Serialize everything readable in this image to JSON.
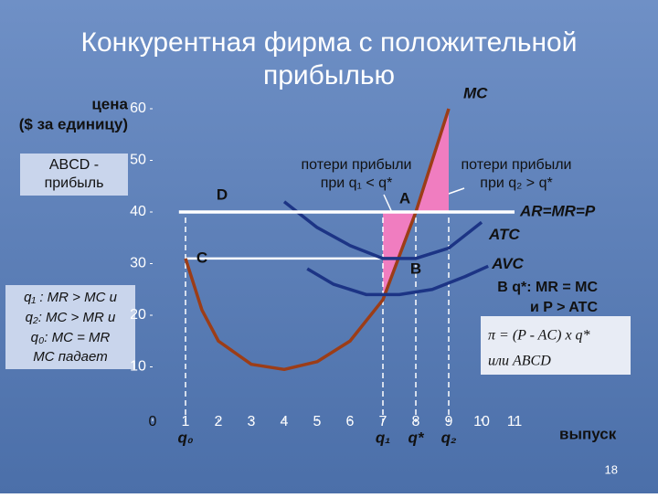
{
  "chart_data": {
    "type": "line",
    "title": [
      "Конкурентная фирма с положительной",
      "прибылью"
    ],
    "y_label": [
      "цена",
      "($ за единицу)"
    ],
    "x_label": "выпуск",
    "xlim": [
      0,
      11.5
    ],
    "ylim": [
      0,
      62
    ],
    "xticks": [
      0,
      1,
      2,
      3,
      4,
      5,
      6,
      7,
      8,
      9,
      10,
      11
    ],
    "yticks": [
      10,
      20,
      30,
      40,
      50,
      60
    ],
    "series": [
      {
        "name": "MC",
        "color": "#9c3d17",
        "x": [
          1,
          1.5,
          2,
          3,
          4,
          5,
          6,
          7,
          8,
          8.5,
          9
        ],
        "values": [
          31,
          21,
          15,
          10.5,
          9.5,
          11,
          15,
          23,
          40,
          50,
          60
        ]
      },
      {
        "name": "ATC",
        "color": "#1c3485",
        "x": [
          4,
          5,
          6,
          7,
          8,
          9,
          10
        ],
        "values": [
          42,
          37,
          33.5,
          31,
          31,
          33,
          38
        ]
      },
      {
        "name": "AVC",
        "color": "#1c3485",
        "x": [
          4.7,
          5.5,
          6.5,
          7.5,
          8.5,
          9.5,
          10.2
        ],
        "values": [
          29,
          26,
          24,
          24,
          25,
          27.5,
          29.5
        ]
      },
      {
        "name": "AR=MR=P",
        "color": "#ffffff",
        "x": [
          0.8,
          11
        ],
        "values": [
          40,
          40
        ]
      }
    ],
    "quantities": [
      {
        "x": 1,
        "label": "q₀"
      },
      {
        "x": 7,
        "label": "q₁"
      },
      {
        "x": 8,
        "label": "q*"
      },
      {
        "x": 9,
        "label": "q₂"
      }
    ],
    "points": [
      {
        "label": "A",
        "x": 8,
        "y": 40
      },
      {
        "label": "B",
        "x": 8,
        "y": 31
      },
      {
        "label": "C",
        "x": 1,
        "y": 31
      },
      {
        "label": "D",
        "x": 1,
        "y": 40
      }
    ],
    "profit_box": [
      "ABCD -",
      "прибыль"
    ],
    "conditions_box": [
      "q₁ : MR > MC и",
      "q₂: MC > MR и",
      "q₀: MC = MR",
      "MC падает"
    ],
    "loss_left": [
      "потери прибыли",
      "при q₁ < q*"
    ],
    "loss_right": [
      "потери прибыли",
      "при q₂ > q*"
    ],
    "equilibrium_note": [
      "B q*: MR = MC",
      "и P > ATC"
    ],
    "formula": [
      "π = (P - AC) x q*",
      "или ABCD"
    ],
    "page_number": "18"
  }
}
